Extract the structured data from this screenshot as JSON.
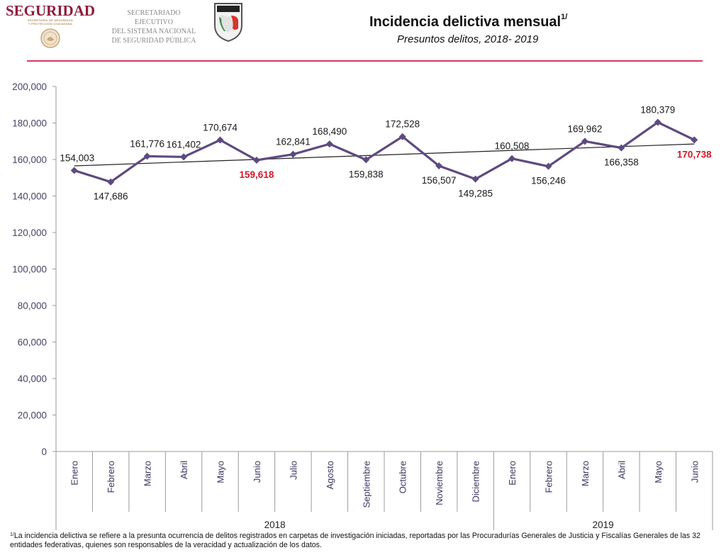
{
  "header": {
    "logo_seguridad": {
      "word": "SEGURIDAD",
      "subtitle_line1": "SECRETARÍA DE SEGURIDAD",
      "subtitle_line2": "Y PROTECCIÓN CIUDADANA"
    },
    "logo_sesnsp": {
      "line1": "SECRETARIADO EJECUTIVO",
      "line2": "DEL SISTEMA NACIONAL",
      "line3": "DE SEGURIDAD PÚBLICA"
    },
    "title": "Incidencia delictiva mensual",
    "title_note": "1/",
    "subtitle": "Presuntos delitos, 2018- 2019",
    "rule_color": "#d6395e"
  },
  "chart_data": {
    "type": "line",
    "title": "Incidencia delictiva mensual",
    "subtitle": "Presuntos delitos, 2018- 2019",
    "xlabel": "",
    "ylabel": "",
    "ylim": [
      0,
      200000
    ],
    "yticks": [
      0,
      20000,
      40000,
      60000,
      80000,
      100000,
      120000,
      140000,
      160000,
      180000,
      200000
    ],
    "ytick_labels": [
      "0",
      "20,000",
      "40,000",
      "60,000",
      "80,000",
      "100,000",
      "120,000",
      "140,000",
      "160,000",
      "180,000",
      "200,000"
    ],
    "categories": [
      "Enero",
      "Febrero",
      "Marzo",
      "Abril",
      "Mayo",
      "Junio",
      "Julio",
      "Agosto",
      "Septiembre",
      "Octubre",
      "Noviembre",
      "Diciembre",
      "Enero",
      "Febrero",
      "Marzo",
      "Abril",
      "Mayo",
      "Junio"
    ],
    "groups": [
      {
        "label": "2018",
        "count": 12
      },
      {
        "label": "2019",
        "count": 6
      }
    ],
    "grid": false,
    "series": [
      {
        "name": "Presuntos delitos",
        "color": "#5e4a80",
        "marker": "diamond",
        "values": [
          154003,
          147686,
          161776,
          161402,
          170674,
          159618,
          162841,
          168490,
          159838,
          172528,
          156507,
          149285,
          160508,
          156246,
          169962,
          166358,
          180379,
          170738
        ],
        "labels": [
          "154,003",
          "147,686",
          "161,776",
          "161,402",
          "170,674",
          "159,618",
          "162,841",
          "168,490",
          "159,838",
          "172,528",
          "156,507",
          "149,285",
          "160,508",
          "156,246",
          "169,962",
          "166,358",
          "180,379",
          "170,738"
        ],
        "label_positions": [
          "above",
          "below",
          "above",
          "above",
          "above",
          "below",
          "above",
          "above",
          "below",
          "above",
          "below",
          "below",
          "above",
          "below",
          "above",
          "below",
          "above",
          "below"
        ],
        "highlighted": [
          5,
          17
        ],
        "highlight_color": "#d0192b"
      }
    ],
    "trendline": {
      "type": "linear",
      "color": "#222222",
      "start_value": 156500,
      "end_value": 168500
    },
    "axis_color": "#9a9a9a",
    "tick_label_color": "#4a4264",
    "category_label_color": "#3d3560"
  },
  "footnote": {
    "marker": "1/",
    "text": "La incidencia delictiva se refiere a la presunta ocurrencia de delitos registrados en carpetas de investigación iniciadas, reportadas por las Procuradurías Generales de Justicia y Fiscalías Generales de las 32 entidades federativas, quienes son responsables de la veracidad y actualización de los datos."
  }
}
